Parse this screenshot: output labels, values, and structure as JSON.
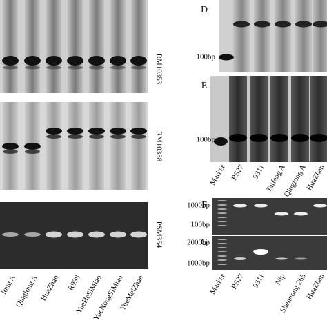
{
  "left": {
    "gel_labels": [
      "RM10353",
      "RM10338",
      "PSM354"
    ],
    "lanes": [
      "long A",
      "Qinglong A",
      "HuaZhan",
      "R998",
      "YueHeSiMiao",
      "YueNongSiMiao",
      "YueMeiZhan"
    ]
  },
  "right": {
    "d": {
      "letter": "D",
      "size_labels": [
        "100bp"
      ]
    },
    "e": {
      "letter": "E",
      "size_labels": [
        "100bp"
      ],
      "lanes": [
        "Marker",
        "R527",
        "9311",
        "Taifeng A",
        "Qinglong A",
        "HuaZhan"
      ]
    },
    "f": {
      "letter": "F",
      "size_labels": [
        "1000bp",
        "100bp"
      ]
    },
    "g": {
      "letter": "G",
      "size_labels": [
        "2000bp",
        "1000bp"
      ],
      "lanes": [
        "Marker",
        "R527",
        "9311",
        "Nip",
        "Shennong 265",
        "HuaZhan"
      ]
    }
  }
}
